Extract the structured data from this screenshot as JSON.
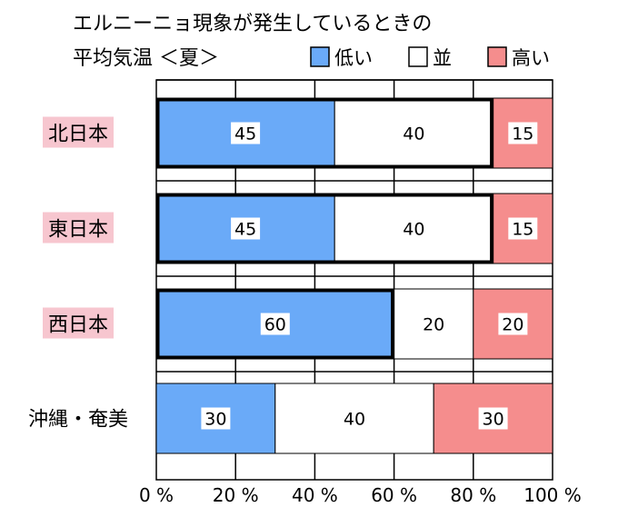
{
  "chart_data": {
    "type": "bar",
    "orientation": "horizontal",
    "stacked": true,
    "title_line1": "エルニーニョ現象が発生しているときの",
    "title_line2": "平均気温 ＜夏＞",
    "categories": [
      "北日本",
      "東日本",
      "西日本",
      "沖縄・奄美"
    ],
    "category_highlight": [
      true,
      true,
      true,
      false
    ],
    "series": [
      {
        "name": "低い",
        "values": [
          45,
          45,
          60,
          30
        ],
        "color": "#6aaaf8"
      },
      {
        "name": "並",
        "values": [
          40,
          40,
          20,
          40
        ],
        "color": "#ffffff"
      },
      {
        "name": "高い",
        "values": [
          15,
          15,
          20,
          30
        ],
        "color": "#f58d8d"
      }
    ],
    "emphasized_segment": [
      {
        "from": 0,
        "to": 85
      },
      {
        "from": 0,
        "to": 85
      },
      {
        "from": 0,
        "to": 60
      },
      null
    ],
    "xlim": [
      0,
      100
    ],
    "x_ticks": [
      0,
      20,
      40,
      60,
      80,
      100
    ],
    "x_tick_labels": [
      "0 %",
      "20 %",
      "40 %",
      "60 %",
      "80 %",
      "100 %"
    ],
    "grid": true,
    "legend_position": "top-right",
    "colors": {
      "label_highlight": "#f7c6cf",
      "grid": "#000000"
    }
  }
}
